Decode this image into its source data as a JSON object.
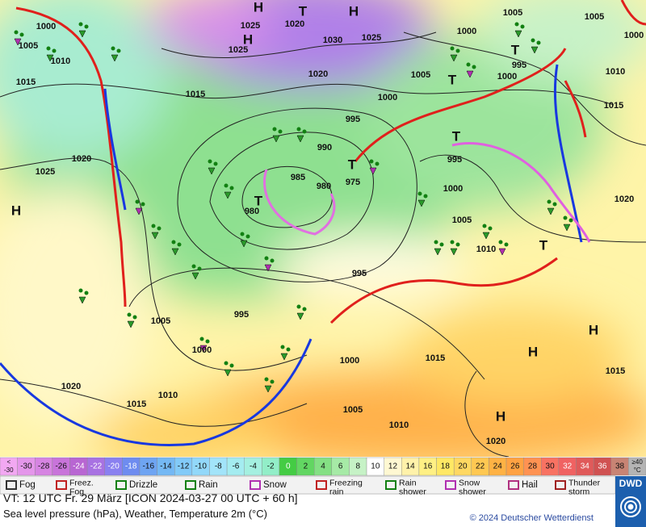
{
  "map": {
    "isobar_labels": [
      1000,
      1005,
      1010,
      1015,
      1015,
      1020,
      1025,
      1025,
      1020,
      1030,
      1025,
      1020,
      1025,
      1000,
      1005,
      1005,
      1000,
      995,
      1000,
      1010,
      1015,
      1020,
      1005,
      1000,
      995,
      990,
      985,
      980,
      975,
      980,
      995,
      1000,
      1005,
      1010,
      995,
      995,
      1005,
      1000,
      1000,
      1015,
      1015,
      1020,
      1015,
      1010,
      1005,
      1010,
      1020
    ],
    "centers": [
      "H",
      "H",
      "H",
      "H",
      "H",
      "H",
      "T",
      "T",
      "T",
      "T",
      "T",
      "T",
      "H",
      "T"
    ]
  },
  "temperature_scale": {
    "below": [
      "<",
      "-30"
    ],
    "values": [
      -30,
      -28,
      -26,
      -24,
      -22,
      -20,
      -18,
      -16,
      -14,
      -12,
      -10,
      -8,
      -6,
      -4,
      -2,
      0,
      2,
      4,
      6,
      8,
      10,
      12,
      14,
      16,
      18,
      20,
      22,
      24,
      26,
      28,
      30,
      32,
      34,
      36,
      38
    ],
    "above": [
      "≥40",
      "°C"
    ],
    "colors": [
      "#f2a8f2",
      "#e496ea",
      "#d684e2",
      "#c874da",
      "#b866d2",
      "#a872e2",
      "#8a80f0",
      "#6e8cf0",
      "#6ea4f2",
      "#74b8f4",
      "#82caf8",
      "#92d8fa",
      "#a2e4fa",
      "#a4ecf0",
      "#a4f0e0",
      "#92eec8",
      "#44cc44",
      "#62d662",
      "#84e084",
      "#a6eaa6",
      "#c6f2c6",
      "#ffffff",
      "#fff8d2",
      "#fff2aa",
      "#fff084",
      "#ffe864",
      "#ffd862",
      "#ffc852",
      "#ffb244",
      "#ffa242",
      "#ff9252",
      "#f87262",
      "#f06262",
      "#e05a5a",
      "#d05252",
      "#c88474",
      "#b4b4b4"
    ]
  },
  "weather_legend": [
    "Fog",
    "Freez. Fog",
    "Drizzle",
    "Rain",
    "Snow",
    "Freezing rain",
    "Rain shower",
    "Snow shower",
    "Hail",
    "Thunder storm"
  ],
  "footer": {
    "valid_time": "VT: 12 UTC Fr.  29 März [ICON 2024-03-27  00 UTC + 60 h]",
    "description": "Sea level pressure (hPa), Weather, Temperature 2m (°C)",
    "copyright": "© 2024 Deutscher Wetterdienst",
    "logo": "DWD"
  }
}
